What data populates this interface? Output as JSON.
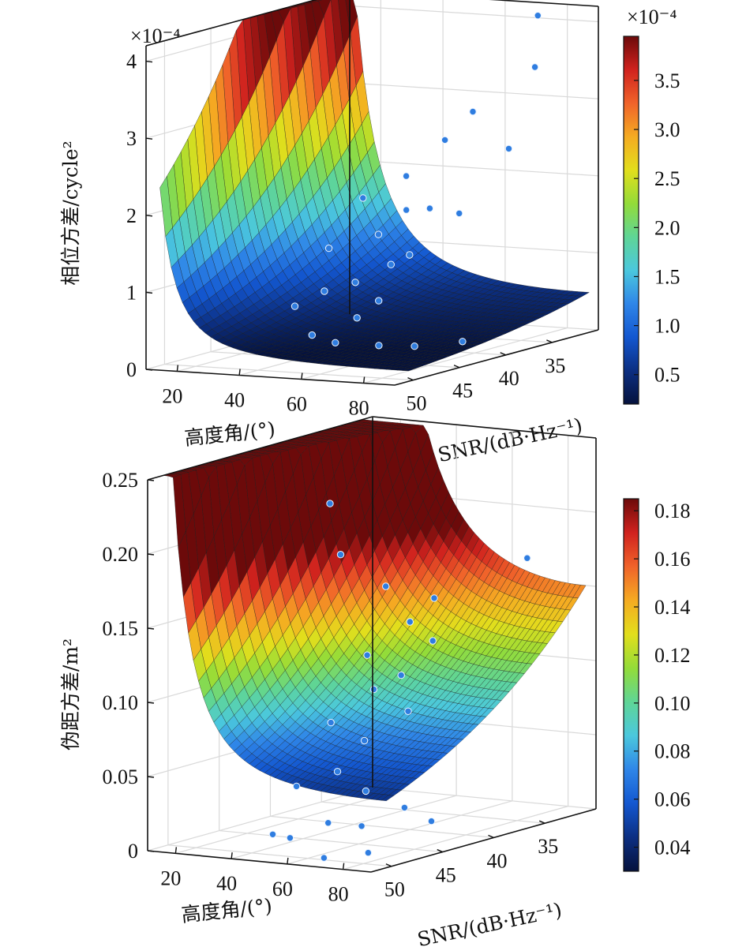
{
  "chart_data": [
    {
      "type": "surface",
      "zlabel": "相位方差/cycle²",
      "xlabel": "高度角/(°)",
      "ylabel": "SNR/(dB·Hz⁻¹)",
      "z_multiplier": "×10⁻⁴",
      "z_ticks": [
        "0",
        "1",
        "2",
        "3",
        "4"
      ],
      "x_ticks": [
        "20",
        "40",
        "60",
        "80"
      ],
      "y_ticks": [
        "50",
        "45",
        "40",
        "35"
      ],
      "xlim": [
        10,
        90
      ],
      "ylim": [
        30,
        52
      ],
      "zlim": [
        0,
        4.2
      ],
      "colorbar_multiplier": "×10⁻⁴",
      "colorbar_ticks": [
        "0.5",
        "1.0",
        "1.5",
        "2.0",
        "2.5",
        "3.0",
        "3.5"
      ],
      "colorbar_range": [
        0.2,
        3.95
      ],
      "surface_model": {
        "a": 0.07,
        "b": 19.0,
        "c": 28.0,
        "snr_ref": 50
      },
      "surface_samples": [
        {
          "elevation": 10,
          "snr": 50,
          "z": 1.1
        },
        {
          "elevation": 90,
          "snr": 50,
          "z": 0.1
        },
        {
          "elevation": 90,
          "snr": 30,
          "z": 3.15
        },
        {
          "elevation": 10,
          "snr": 30,
          "z": 4.1
        }
      ],
      "scatter_points": [
        {
          "elevation": 72,
          "snr": 30.5,
          "z": 4.05
        },
        {
          "elevation": 80,
          "snr": 33.5,
          "z": 3.5
        },
        {
          "elevation": 66,
          "snr": 35.5,
          "z": 2.95
        },
        {
          "elevation": 50,
          "snr": 42.0,
          "z": 2.0
        },
        {
          "elevation": 55,
          "snr": 39.0,
          "z": 2.2
        },
        {
          "elevation": 85,
          "snr": 38.0,
          "z": 2.6
        },
        {
          "elevation": 60,
          "snr": 36.5,
          "z": 2.6
        },
        {
          "elevation": 45,
          "snr": 44.0,
          "z": 1.4
        },
        {
          "elevation": 52,
          "snr": 41.0,
          "z": 1.5
        },
        {
          "elevation": 58,
          "snr": 40.0,
          "z": 1.8
        },
        {
          "elevation": 70,
          "snr": 41.5,
          "z": 1.9
        },
        {
          "elevation": 62,
          "snr": 43.0,
          "z": 1.2
        },
        {
          "elevation": 48,
          "snr": 45.5,
          "z": 0.9
        },
        {
          "elevation": 55,
          "snr": 44.5,
          "z": 1.0
        },
        {
          "elevation": 65,
          "snr": 42.0,
          "z": 1.3
        },
        {
          "elevation": 75,
          "snr": 40.0,
          "z": 1.8
        },
        {
          "elevation": 40,
          "snr": 46.0,
          "z": 0.7
        },
        {
          "elevation": 60,
          "snr": 46.0,
          "z": 0.6
        },
        {
          "elevation": 70,
          "snr": 47.0,
          "z": 0.3
        },
        {
          "elevation": 80,
          "snr": 46.5,
          "z": 0.3
        },
        {
          "elevation": 50,
          "snr": 47.5,
          "z": 0.4
        },
        {
          "elevation": 64,
          "snr": 45.0,
          "z": 0.8
        },
        {
          "elevation": 88,
          "snr": 44.0,
          "z": 0.3
        },
        {
          "elevation": 56,
          "snr": 47.0,
          "z": 0.3
        }
      ]
    },
    {
      "type": "surface",
      "zlabel": "伪距方差/m²",
      "xlabel": "高度角/(°)",
      "ylabel": "SNR/(dB·Hz⁻¹)",
      "z_ticks": [
        "0",
        "0.05",
        "0.10",
        "0.15",
        "0.20",
        "0.25"
      ],
      "x_ticks": [
        "20",
        "40",
        "60",
        "80"
      ],
      "y_ticks": [
        "50",
        "45",
        "40",
        "35"
      ],
      "xlim": [
        10,
        90
      ],
      "ylim": [
        30,
        52
      ],
      "zlim": [
        0,
        0.25
      ],
      "colorbar_ticks": [
        "0.04",
        "0.06",
        "0.08",
        "0.10",
        "0.12",
        "0.14",
        "0.16",
        "0.18"
      ],
      "colorbar_range": [
        0.03,
        0.185
      ],
      "surface_model": {
        "a": 0.03,
        "b": 4.0,
        "c": 30.0,
        "snr_ref": 50
      },
      "surface_samples": [
        {
          "elevation": 10,
          "snr": 50,
          "z": 0.13
        },
        {
          "elevation": 90,
          "snr": 50,
          "z": 0.03
        },
        {
          "elevation": 90,
          "snr": 30,
          "z": 0.085
        },
        {
          "elevation": 10,
          "snr": 30,
          "z": 0.19
        }
      ],
      "scatter_points": [
        {
          "elevation": 46,
          "snr": 44.0,
          "z": 0.225
        },
        {
          "elevation": 48,
          "snr": 43.5,
          "z": 0.19
        },
        {
          "elevation": 55,
          "snr": 41.0,
          "z": 0.165
        },
        {
          "elevation": 80,
          "snr": 34.0,
          "z": 0.175
        },
        {
          "elevation": 65,
          "snr": 39.0,
          "z": 0.155
        },
        {
          "elevation": 60,
          "snr": 40.0,
          "z": 0.14
        },
        {
          "elevation": 52,
          "snr": 42.0,
          "z": 0.12
        },
        {
          "elevation": 70,
          "snr": 40.5,
          "z": 0.13
        },
        {
          "elevation": 58,
          "snr": 43.0,
          "z": 0.1
        },
        {
          "elevation": 66,
          "snr": 42.5,
          "z": 0.11
        },
        {
          "elevation": 50,
          "snr": 45.0,
          "z": 0.08
        },
        {
          "elevation": 62,
          "snr": 45.0,
          "z": 0.07
        },
        {
          "elevation": 74,
          "snr": 44.0,
          "z": 0.09
        },
        {
          "elevation": 56,
          "snr": 46.0,
          "z": 0.05
        },
        {
          "elevation": 45,
          "snr": 47.0,
          "z": 0.04
        },
        {
          "elevation": 68,
          "snr": 46.5,
          "z": 0.04
        },
        {
          "elevation": 80,
          "snr": 46.0,
          "z": 0.03
        },
        {
          "elevation": 60,
          "snr": 48.0,
          "z": 0.02
        },
        {
          "elevation": 72,
          "snr": 48.0,
          "z": 0.02
        },
        {
          "elevation": 50,
          "snr": 49.0,
          "z": 0.01
        },
        {
          "elevation": 64,
          "snr": 49.5,
          "z": 0.0
        },
        {
          "elevation": 78,
          "snr": 49.0,
          "z": 0.005
        },
        {
          "elevation": 86,
          "snr": 45.0,
          "z": 0.02
        },
        {
          "elevation": 42,
          "snr": 48.5,
          "z": 0.01
        }
      ]
    }
  ],
  "colors": {
    "scatter": "#2f7de0",
    "scatter_edge": "#eaf3ff",
    "grid": "#d9d9d9",
    "axis": "#111111",
    "mesh": "#1a1a1a"
  },
  "colormap": [
    "#05123d",
    "#0c2f82",
    "#1357d0",
    "#2f86e8",
    "#4bc8dd",
    "#5fd596",
    "#93dc39",
    "#e2de1c",
    "#f5ab22",
    "#f0632a",
    "#d0221e",
    "#6c0a0a"
  ]
}
